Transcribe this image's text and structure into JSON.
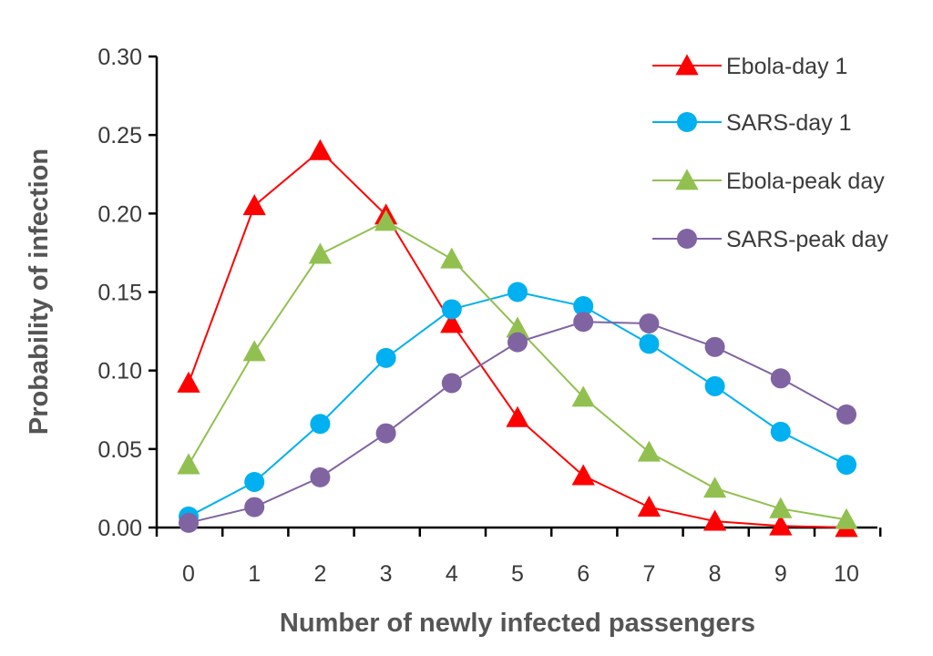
{
  "chart_data": {
    "type": "line",
    "xlabel": "Number of newly infected passengers",
    "ylabel": "Probability of infection",
    "x": [
      0,
      1,
      2,
      3,
      4,
      5,
      6,
      7,
      8,
      9,
      10
    ],
    "xlim": [
      0,
      10
    ],
    "ylim": [
      0,
      0.3
    ],
    "yticks": [
      "0.00",
      "0.05",
      "0.10",
      "0.15",
      "0.20",
      "0.25",
      "0.30"
    ],
    "xticks": [
      "0",
      "1",
      "2",
      "3",
      "4",
      "5",
      "6",
      "7",
      "8",
      "9",
      "10"
    ],
    "grid": false,
    "legend_position": "top-right",
    "series": [
      {
        "name": "Ebola-day 1",
        "marker": "triangle",
        "color": "#ff0000",
        "values": [
          0.092,
          0.205,
          0.24,
          0.199,
          0.13,
          0.07,
          0.033,
          0.013,
          0.004,
          0.001,
          0.0
        ]
      },
      {
        "name": "SARS-day 1",
        "marker": "circle",
        "color": "#00b0f0",
        "values": [
          0.007,
          0.029,
          0.066,
          0.108,
          0.139,
          0.15,
          0.141,
          0.117,
          0.09,
          0.061,
          0.04
        ]
      },
      {
        "name": "Ebola-peak day",
        "marker": "triangle",
        "color": "#92c050",
        "values": [
          0.04,
          0.112,
          0.174,
          0.195,
          0.171,
          0.127,
          0.083,
          0.048,
          0.025,
          0.012,
          0.005
        ]
      },
      {
        "name": "SARS-peak day",
        "marker": "circle",
        "color": "#8064a2",
        "values": [
          0.003,
          0.013,
          0.032,
          0.06,
          0.092,
          0.118,
          0.131,
          0.13,
          0.115,
          0.095,
          0.072
        ]
      }
    ]
  }
}
